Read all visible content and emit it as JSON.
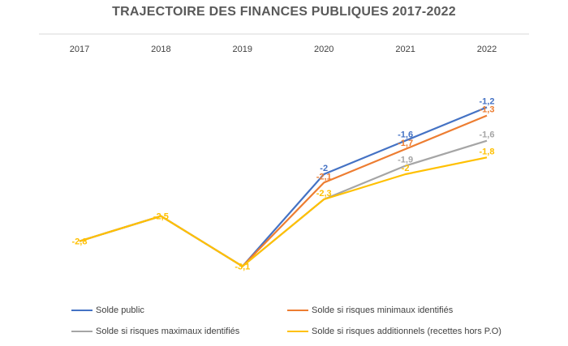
{
  "chart_data": {
    "type": "line",
    "title": "TRAJECTOIRE DES FINANCES PUBLIQUES 2017-2022",
    "x": [
      "2017",
      "2018",
      "2019",
      "2020",
      "2021",
      "2022"
    ],
    "ylim": [
      -3.5,
      -0.5
    ],
    "grid": false,
    "legend_position": "bottom",
    "series": [
      {
        "name": "Solde public",
        "color": "#4472C4",
        "values": [
          -2.8,
          -2.5,
          -3.1,
          -2,
          -1.6,
          -1.2
        ],
        "labels": [
          "",
          "",
          "",
          "-2",
          "-1,6",
          "-1,2"
        ]
      },
      {
        "name": "Solde si risques minimaux identifiés",
        "color": "#ED7D31",
        "values": [
          -2.8,
          -2.5,
          -3.1,
          -2.1,
          -1.7,
          -1.3
        ],
        "labels": [
          "",
          "",
          "",
          "-2,1",
          "-1,7",
          "-1,3"
        ]
      },
      {
        "name": "Solde si risques maximaux identifiés",
        "color": "#A5A5A5",
        "values": [
          -2.8,
          -2.5,
          -3.1,
          -2.3,
          -1.9,
          -1.6
        ],
        "labels": [
          "",
          "",
          "",
          "",
          "-1,9",
          "-1,6"
        ]
      },
      {
        "name": "Solde si risques additionnels (recettes hors P.O)",
        "color": "#FFC000",
        "values": [
          -2.8,
          -2.5,
          -3.1,
          -2.3,
          -2,
          -1.8
        ],
        "labels": [
          "-2,8",
          "-2,5",
          "-3,1",
          "-2,3",
          "-2",
          "-1,8"
        ]
      }
    ]
  }
}
